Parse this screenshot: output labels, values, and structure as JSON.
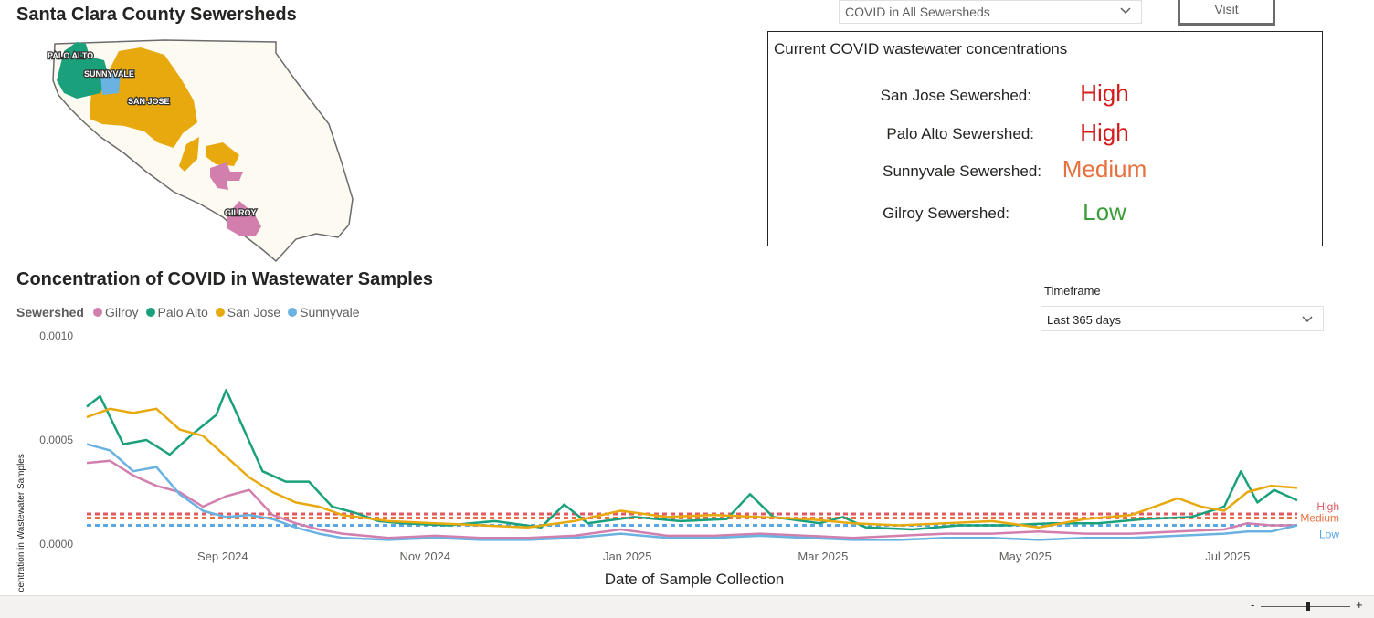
{
  "map": {
    "title": "Santa Clara County Sewersheds",
    "labels": {
      "palo_alto": "PALO ALTO",
      "sunnyvale": "SUNNYVALE",
      "san_jose": "SAN JOSE",
      "gilroy": "GILROY"
    },
    "colors": {
      "county": "#fdfaf2",
      "palo_alto": "#1aa17b",
      "sunnyvale": "#6ab2e2",
      "san_jose": "#e8a90e",
      "gilroy": "#d27fae"
    }
  },
  "selector": {
    "value": "COVID in All Sewersheds"
  },
  "visit_button": {
    "label": "Visit"
  },
  "concentrations": {
    "title": "Current COVID wastewater concentrations",
    "rows": [
      {
        "label": "San Jose Sewershed:",
        "level": "High",
        "color": "#d41c1c"
      },
      {
        "label": "Palo Alto Sewershed:",
        "level": "High",
        "color": "#d41c1c"
      },
      {
        "label": "Sunnyvale Sewershed:",
        "level": "Medium",
        "color": "#e8703e"
      },
      {
        "label": "Gilroy Sewershed:",
        "level": "Low",
        "color": "#3c9e38"
      }
    ]
  },
  "timeframe": {
    "label": "Timeframe",
    "value": "Last 365 days"
  },
  "chart_data": {
    "type": "line",
    "title": "Concentration of COVID in Wastewater Samples",
    "xlabel": "Date of Sample Collection",
    "ylabel": "Concentration in Wastewater Samples",
    "legend_title": "Sewershed",
    "legend_position": "top-left",
    "x_range": [
      "2024-07-22",
      "2025-07-22"
    ],
    "ylim": [
      0,
      0.001
    ],
    "y_ticks": [
      "0.0000",
      "0.0005",
      "0.0010"
    ],
    "x_ticks": [
      {
        "date": "2024-09-01",
        "label": "Sep 2024"
      },
      {
        "date": "2024-11-01",
        "label": "Nov 2024"
      },
      {
        "date": "2025-01-01",
        "label": "Jan 2025"
      },
      {
        "date": "2025-03-01",
        "label": "Mar 2025"
      },
      {
        "date": "2025-05-01",
        "label": "May 2025"
      },
      {
        "date": "2025-07-01",
        "label": "Jul 2025"
      }
    ],
    "grid": false,
    "thresholds": [
      {
        "name": "High",
        "value": 0.000145,
        "color": "#e05a63"
      },
      {
        "name": "Medium",
        "value": 0.000125,
        "color": "#e8703e"
      },
      {
        "name": "Low",
        "value": 9e-05,
        "color": "#5aa7e6"
      }
    ],
    "series": [
      {
        "name": "Gilroy",
        "color": "#d27fae",
        "points": [
          [
            "2024-07-22",
            0.00039
          ],
          [
            "2024-07-29",
            0.0004
          ],
          [
            "2024-08-05",
            0.00033
          ],
          [
            "2024-08-12",
            0.00028
          ],
          [
            "2024-08-19",
            0.00025
          ],
          [
            "2024-08-26",
            0.00018
          ],
          [
            "2024-09-02",
            0.00023
          ],
          [
            "2024-09-09",
            0.00026
          ],
          [
            "2024-09-16",
            0.00014
          ],
          [
            "2024-09-23",
            0.0001
          ],
          [
            "2024-09-30",
            7e-05
          ],
          [
            "2024-10-07",
            5e-05
          ],
          [
            "2024-10-21",
            3e-05
          ],
          [
            "2024-11-04",
            4e-05
          ],
          [
            "2024-11-18",
            3e-05
          ],
          [
            "2024-12-02",
            3e-05
          ],
          [
            "2024-12-16",
            4e-05
          ],
          [
            "2024-12-30",
            7e-05
          ],
          [
            "2025-01-13",
            4e-05
          ],
          [
            "2025-01-27",
            4e-05
          ],
          [
            "2025-02-10",
            5e-05
          ],
          [
            "2025-02-24",
            4e-05
          ],
          [
            "2025-03-10",
            3e-05
          ],
          [
            "2025-03-24",
            4e-05
          ],
          [
            "2025-04-07",
            5e-05
          ],
          [
            "2025-04-21",
            5e-05
          ],
          [
            "2025-05-05",
            6e-05
          ],
          [
            "2025-05-19",
            5e-05
          ],
          [
            "2025-06-02",
            5e-05
          ],
          [
            "2025-06-16",
            6e-05
          ],
          [
            "2025-06-30",
            7e-05
          ],
          [
            "2025-07-07",
            0.0001
          ],
          [
            "2025-07-14",
            9e-05
          ],
          [
            "2025-07-22",
            9e-05
          ]
        ]
      },
      {
        "name": "Palo Alto",
        "color": "#1aa17b",
        "points": [
          [
            "2024-07-22",
            0.00066
          ],
          [
            "2024-07-26",
            0.00071
          ],
          [
            "2024-08-02",
            0.00048
          ],
          [
            "2024-08-09",
            0.0005
          ],
          [
            "2024-08-16",
            0.00043
          ],
          [
            "2024-08-23",
            0.00053
          ],
          [
            "2024-08-30",
            0.00062
          ],
          [
            "2024-09-02",
            0.00074
          ],
          [
            "2024-09-06",
            0.0006
          ],
          [
            "2024-09-13",
            0.00035
          ],
          [
            "2024-09-20",
            0.0003
          ],
          [
            "2024-09-27",
            0.0003
          ],
          [
            "2024-10-04",
            0.00018
          ],
          [
            "2024-10-11",
            0.00015
          ],
          [
            "2024-10-18",
            0.00011
          ],
          [
            "2024-10-25",
            0.0001
          ],
          [
            "2024-11-08",
            9e-05
          ],
          [
            "2024-11-22",
            0.00011
          ],
          [
            "2024-12-06",
            8e-05
          ],
          [
            "2024-12-13",
            0.00019
          ],
          [
            "2024-12-20",
            0.0001
          ],
          [
            "2025-01-03",
            0.00013
          ],
          [
            "2025-01-17",
            0.00011
          ],
          [
            "2025-01-31",
            0.00012
          ],
          [
            "2025-02-07",
            0.00024
          ],
          [
            "2025-02-14",
            0.00013
          ],
          [
            "2025-02-28",
            0.0001
          ],
          [
            "2025-03-07",
            0.00013
          ],
          [
            "2025-03-14",
            8e-05
          ],
          [
            "2025-03-28",
            7e-05
          ],
          [
            "2025-04-11",
            9e-05
          ],
          [
            "2025-04-25",
            9e-05
          ],
          [
            "2025-05-09",
            0.0001
          ],
          [
            "2025-05-23",
            0.0001
          ],
          [
            "2025-06-06",
            0.00012
          ],
          [
            "2025-06-20",
            0.00013
          ],
          [
            "2025-06-30",
            0.00018
          ],
          [
            "2025-07-05",
            0.00035
          ],
          [
            "2025-07-10",
            0.0002
          ],
          [
            "2025-07-15",
            0.00026
          ],
          [
            "2025-07-22",
            0.00021
          ]
        ]
      },
      {
        "name": "San Jose",
        "color": "#e8a90e",
        "points": [
          [
            "2024-07-22",
            0.00061
          ],
          [
            "2024-07-29",
            0.00065
          ],
          [
            "2024-08-05",
            0.00063
          ],
          [
            "2024-08-12",
            0.00065
          ],
          [
            "2024-08-19",
            0.00055
          ],
          [
            "2024-08-26",
            0.00052
          ],
          [
            "2024-09-02",
            0.00042
          ],
          [
            "2024-09-09",
            0.00032
          ],
          [
            "2024-09-16",
            0.00025
          ],
          [
            "2024-09-23",
            0.0002
          ],
          [
            "2024-09-30",
            0.00018
          ],
          [
            "2024-10-07",
            0.00014
          ],
          [
            "2024-10-21",
            0.00011
          ],
          [
            "2024-11-04",
            0.0001
          ],
          [
            "2024-11-18",
            9e-05
          ],
          [
            "2024-12-02",
            8e-05
          ],
          [
            "2024-12-16",
            0.00011
          ],
          [
            "2024-12-30",
            0.00016
          ],
          [
            "2025-01-13",
            0.00013
          ],
          [
            "2025-01-27",
            0.00014
          ],
          [
            "2025-02-10",
            0.00013
          ],
          [
            "2025-02-24",
            0.00012
          ],
          [
            "2025-03-10",
            0.0001
          ],
          [
            "2025-03-24",
            9e-05
          ],
          [
            "2025-04-07",
            0.0001
          ],
          [
            "2025-04-21",
            0.00011
          ],
          [
            "2025-05-05",
            8e-05
          ],
          [
            "2025-05-19",
            0.00012
          ],
          [
            "2025-06-02",
            0.00014
          ],
          [
            "2025-06-16",
            0.00022
          ],
          [
            "2025-06-23",
            0.00018
          ],
          [
            "2025-06-30",
            0.00016
          ],
          [
            "2025-07-07",
            0.00025
          ],
          [
            "2025-07-14",
            0.00028
          ],
          [
            "2025-07-22",
            0.00027
          ]
        ]
      },
      {
        "name": "Sunnyvale",
        "color": "#6ab2e2",
        "points": [
          [
            "2024-07-22",
            0.00048
          ],
          [
            "2024-07-29",
            0.00045
          ],
          [
            "2024-08-05",
            0.00035
          ],
          [
            "2024-08-12",
            0.00037
          ],
          [
            "2024-08-19",
            0.00024
          ],
          [
            "2024-08-26",
            0.00016
          ],
          [
            "2024-09-02",
            0.00013
          ],
          [
            "2024-09-09",
            0.00014
          ],
          [
            "2024-09-16",
            0.00012
          ],
          [
            "2024-09-23",
            8e-05
          ],
          [
            "2024-09-30",
            5e-05
          ],
          [
            "2024-10-07",
            3e-05
          ],
          [
            "2024-10-21",
            2e-05
          ],
          [
            "2024-11-04",
            3e-05
          ],
          [
            "2024-11-18",
            2e-05
          ],
          [
            "2024-12-02",
            2e-05
          ],
          [
            "2024-12-16",
            3e-05
          ],
          [
            "2024-12-30",
            5e-05
          ],
          [
            "2025-01-13",
            3e-05
          ],
          [
            "2025-01-27",
            3e-05
          ],
          [
            "2025-02-10",
            4e-05
          ],
          [
            "2025-02-24",
            3e-05
          ],
          [
            "2025-03-10",
            2e-05
          ],
          [
            "2025-03-24",
            2e-05
          ],
          [
            "2025-04-07",
            3e-05
          ],
          [
            "2025-04-21",
            3e-05
          ],
          [
            "2025-05-05",
            2e-05
          ],
          [
            "2025-05-19",
            3e-05
          ],
          [
            "2025-06-02",
            3e-05
          ],
          [
            "2025-06-16",
            4e-05
          ],
          [
            "2025-06-30",
            5e-05
          ],
          [
            "2025-07-07",
            6e-05
          ],
          [
            "2025-07-14",
            6e-05
          ],
          [
            "2025-07-22",
            9e-05
          ]
        ]
      }
    ]
  }
}
